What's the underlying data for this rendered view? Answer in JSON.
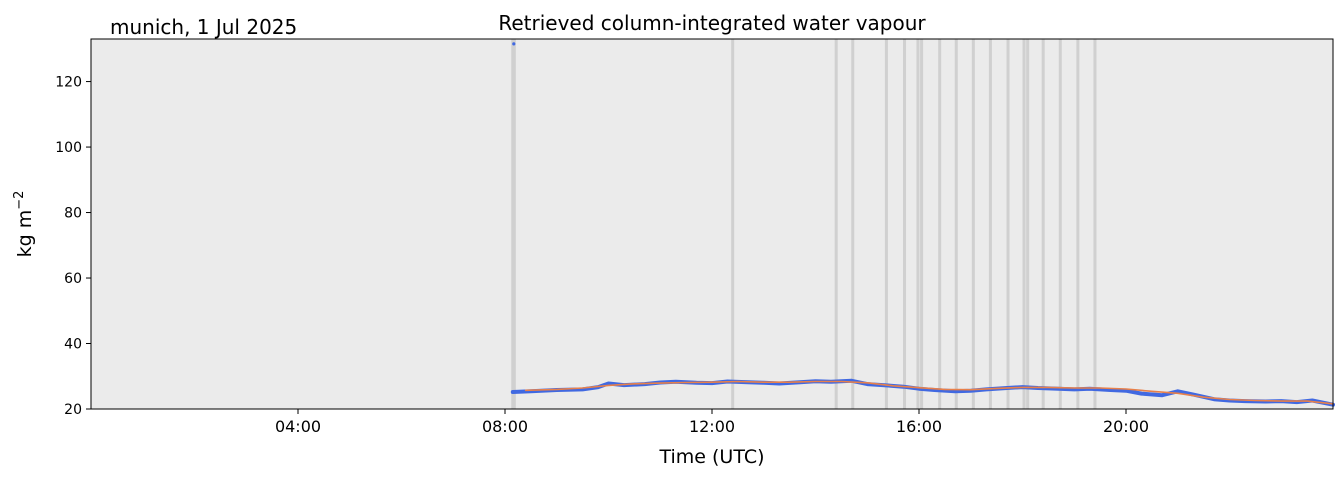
{
  "chart_data": {
    "type": "line",
    "title": "Retrieved column-integrated water vapour",
    "corner_label": "munich, 1 Jul 2025",
    "xlabel": "Time (UTC)",
    "ylabel": "kg m",
    "ylabel_superscript": "−2",
    "xlim_hours": [
      0,
      24
    ],
    "ylim": [
      20,
      133
    ],
    "x_ticks": [
      {
        "hour": 4,
        "label": "04:00"
      },
      {
        "hour": 8,
        "label": "08:00"
      },
      {
        "hour": 12,
        "label": "12:00"
      },
      {
        "hour": 16,
        "label": "16:00"
      },
      {
        "hour": 20,
        "label": "20:00"
      }
    ],
    "y_ticks": [
      {
        "value": 20,
        "label": "20"
      },
      {
        "value": 40,
        "label": "40"
      },
      {
        "value": 60,
        "label": "60"
      },
      {
        "value": 80,
        "label": "80"
      },
      {
        "value": 100,
        "label": "100"
      },
      {
        "value": 120,
        "label": "120"
      }
    ],
    "grid": false,
    "background_color": "#ebebeb",
    "flag_band_color": "#d0d0d0",
    "flagged_times_hours": [
      8.15,
      8.18,
      12.4,
      14.4,
      14.72,
      15.37,
      15.72,
      15.98,
      16.05,
      16.4,
      16.72,
      17.05,
      17.38,
      17.72,
      18.03,
      18.1,
      18.4,
      18.73,
      19.07,
      19.4
    ],
    "series": [
      {
        "color": "#4169e1",
        "x_hours": [
          8.15,
          8.5,
          9.0,
          9.5,
          9.8,
          10.0,
          10.3,
          10.7,
          11.0,
          11.3,
          11.7,
          12.0,
          12.3,
          12.7,
          13.0,
          13.3,
          13.7,
          14.0,
          14.3,
          14.7,
          15.0,
          15.3,
          15.7,
          16.0,
          16.3,
          16.7,
          17.0,
          17.3,
          17.7,
          18.0,
          18.3,
          18.7,
          19.0,
          19.3,
          19.7,
          20.0,
          20.3,
          20.7,
          21.0,
          21.3,
          21.7,
          22.0,
          22.3,
          22.7,
          23.0,
          23.3,
          23.6,
          24.0
        ],
        "values": [
          25.2,
          25.4,
          25.8,
          26.0,
          26.7,
          27.8,
          27.3,
          27.6,
          28.1,
          28.3,
          28.0,
          27.9,
          28.4,
          28.2,
          28.0,
          27.8,
          28.2,
          28.5,
          28.3,
          28.6,
          27.6,
          27.3,
          26.8,
          26.2,
          25.8,
          25.4,
          25.6,
          26.0,
          26.4,
          26.7,
          26.4,
          26.2,
          26.0,
          26.2,
          25.8,
          25.6,
          24.7,
          24.2,
          25.4,
          24.4,
          23.0,
          22.6,
          22.4,
          22.3,
          22.4,
          22.1,
          22.6,
          21.3
        ]
      },
      {
        "color": "#e8804a",
        "x_hours": [
          8.4,
          9.0,
          9.5,
          10.0,
          10.5,
          11.0,
          11.5,
          12.0,
          12.5,
          13.0,
          13.5,
          14.0,
          14.5,
          15.0,
          15.5,
          16.0,
          16.5,
          17.0,
          17.5,
          18.0,
          18.5,
          19.0,
          19.5,
          20.0,
          20.5,
          21.0,
          21.5,
          22.0,
          22.5,
          23.0,
          23.5,
          24.0
        ],
        "values": [
          25.7,
          26.0,
          26.4,
          27.2,
          27.7,
          27.9,
          28.1,
          28.2,
          28.4,
          28.2,
          28.2,
          28.4,
          28.4,
          28.0,
          27.1,
          26.5,
          26.0,
          25.9,
          26.3,
          26.6,
          26.6,
          26.4,
          26.4,
          26.1,
          25.4,
          24.8,
          23.6,
          22.9,
          22.6,
          22.4,
          22.4,
          21.6
        ]
      }
    ],
    "isolated_points": [
      {
        "hour": 8.17,
        "value": 131.5,
        "color": "#4169e1"
      }
    ]
  }
}
